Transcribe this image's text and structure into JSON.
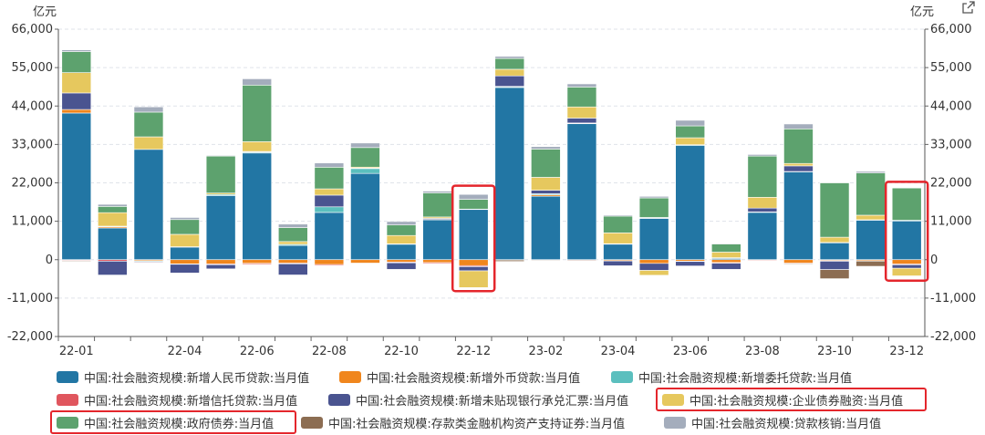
{
  "units": {
    "left": "亿元",
    "right": "亿元"
  },
  "chart_data": {
    "type": "bar",
    "stacked": true,
    "categories": [
      "22-01",
      "22-02",
      "22-03",
      "22-04",
      "22-05",
      "22-06",
      "22-07",
      "22-08",
      "22-09",
      "22-10",
      "22-11",
      "22-12",
      "23-01",
      "23-02",
      "23-03",
      "23-04",
      "23-05",
      "23-06",
      "23-07",
      "23-08",
      "23-09",
      "23-10",
      "23-11",
      "23-12"
    ],
    "xtick_labels": [
      "22-01",
      "",
      "",
      "22-04",
      "",
      "22-06",
      "",
      "22-08",
      "",
      "22-10",
      "",
      "22-12",
      "",
      "23-02",
      "",
      "23-04",
      "",
      "23-06",
      "",
      "23-08",
      "",
      "23-10",
      "",
      "23-12"
    ],
    "ylim": [
      -22000,
      66000
    ],
    "yticks": [
      -22000,
      -11000,
      0,
      11000,
      22000,
      33000,
      44000,
      55000,
      66000
    ],
    "ytick_labels": [
      "-22,000",
      "-11,000",
      "0",
      "11,000",
      "22,000",
      "33,000",
      "44,000",
      "55,000",
      "66,000"
    ],
    "grid": true,
    "legend_position": "bottom",
    "series": [
      {
        "name": "中国:社会融资规模:新增人民币贷款:当月值",
        "color": "#2276a4",
        "values": [
          41988,
          9084,
          31577,
          3616,
          18369,
          30540,
          4088,
          13535,
          24703,
          4431,
          11444,
          14401,
          49314,
          18184,
          38942,
          4431,
          11825,
          32713,
          364,
          13542,
          25208,
          4837,
          11315,
          11091
        ]
      },
      {
        "name": "中国:社会融资规模:新增外币贷款:当月值",
        "color": "#f0861d",
        "values": [
          1015,
          322,
          -296,
          -1224,
          -1241,
          -1045,
          -1000,
          -1400,
          -1000,
          -700,
          -850,
          -1700,
          110,
          400,
          160,
          -270,
          -1070,
          -420,
          -800,
          -180,
          -1000,
          -240,
          -300,
          -1260
        ]
      },
      {
        "name": "中国:社会融资规模:新增委托贷款:当月值",
        "color": "#5bbfbe",
        "values": [
          -79,
          188,
          -223,
          92,
          300,
          250,
          300,
          1600,
          1400,
          100,
          86,
          88,
          200,
          300,
          40,
          150,
          160,
          200,
          200,
          130,
          50,
          100,
          120,
          210
        ]
      },
      {
        "name": "中国:社会融资规模:新增信托贷款:当月值",
        "color": "#e0565e",
        "values": [
          -200,
          -423,
          -200,
          -100,
          -200,
          -300,
          -200,
          -300,
          -100,
          -200,
          -300,
          -300,
          -100,
          -100,
          -200,
          -100,
          100,
          -100,
          -200,
          -200,
          -200,
          -200,
          -100,
          -200
        ]
      },
      {
        "name": "中国:社会融资规模:新增未贴现银行承兑汇票:当月值",
        "color": "#4a5490",
        "values": [
          4733,
          -4000,
          -200,
          -2500,
          -1200,
          200,
          -3200,
          3350,
          100,
          -1900,
          300,
          -1200,
          3000,
          1000,
          1400,
          -1400,
          -2000,
          -1300,
          -1800,
          1100,
          1600,
          -2400,
          0,
          -1000
        ]
      },
      {
        "name": "中国:社会融资规模:企业债券融资:当月值",
        "color": "#e6c85e",
        "values": [
          5829,
          3871,
          3599,
          3548,
          400,
          2800,
          800,
          1800,
          300,
          2400,
          400,
          -4800,
          1900,
          3700,
          3200,
          3100,
          -1400,
          2000,
          1600,
          3100,
          700,
          1500,
          1300,
          -2200
        ]
      },
      {
        "name": "中国:社会融资规模:政府债券:当月值",
        "color": "#5da26e",
        "values": [
          6026,
          1785,
          7073,
          4230,
          10600,
          16200,
          4000,
          6200,
          5600,
          3000,
          6900,
          2800,
          3100,
          8100,
          5700,
          4800,
          5600,
          3400,
          2300,
          11800,
          9900,
          15600,
          12100,
          9300
        ]
      },
      {
        "name": "中国:社会融资规模:存款类金融机构资产支持证券:当月值",
        "color": "#8c6d52",
        "values": [
          -200,
          -100,
          -100,
          -100,
          -100,
          -100,
          -100,
          -100,
          -100,
          -100,
          -100,
          -100,
          -400,
          -200,
          -200,
          -100,
          -100,
          -100,
          -100,
          -100,
          -200,
          -2600,
          -1500,
          -100
        ]
      },
      {
        "name": "中国:社会融资规模:贷款核销:当月值",
        "color": "#a4adbc",
        "values": [
          500,
          600,
          1500,
          600,
          200,
          1800,
          1000,
          1200,
          1300,
          1000,
          500,
          1400,
          600,
          700,
          900,
          300,
          450,
          1600,
          200,
          450,
          1400,
          100,
          450,
          50
        ]
      }
    ]
  }
}
